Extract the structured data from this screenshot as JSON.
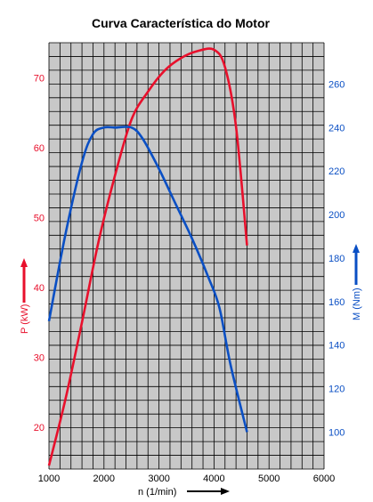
{
  "colors": {
    "power": "#e8102c",
    "torque": "#0a4fc4",
    "grid_bg": "#c8c8c8",
    "grid_line": "#000000"
  },
  "chart_data": {
    "type": "line",
    "title": "Curva Característica do Motor",
    "grid": true,
    "x_axis": {
      "label": "n  (1/min)",
      "range": [
        1000,
        6000
      ],
      "ticks": [
        1000,
        2000,
        3000,
        4000,
        5000,
        6000
      ]
    },
    "y_axis_left": {
      "label": "P (kW)",
      "range": [
        14,
        75
      ],
      "ticks": [
        20,
        30,
        40,
        50,
        60,
        70
      ]
    },
    "y_axis_right": {
      "label": "M (Nm)",
      "range": [
        83,
        279
      ],
      "ticks": [
        100,
        120,
        140,
        160,
        180,
        200,
        220,
        240,
        260
      ]
    },
    "series": [
      {
        "axis": "left",
        "color": "#e8102c",
        "points": [
          [
            1000,
            14.5
          ],
          [
            1300,
            24
          ],
          [
            1600,
            35
          ],
          [
            1900,
            46.5
          ],
          [
            2200,
            56
          ],
          [
            2500,
            64
          ],
          [
            2800,
            68
          ],
          [
            3100,
            71
          ],
          [
            3400,
            72.8
          ],
          [
            3700,
            73.8
          ],
          [
            4000,
            74
          ],
          [
            4200,
            71.5
          ],
          [
            4400,
            63
          ],
          [
            4600,
            46
          ]
        ]
      },
      {
        "axis": "right",
        "color": "#0a4fc4",
        "points": [
          [
            1000,
            151
          ],
          [
            1300,
            191
          ],
          [
            1600,
            224
          ],
          [
            1800,
            237
          ],
          [
            2000,
            240
          ],
          [
            2200,
            240
          ],
          [
            2500,
            240
          ],
          [
            2700,
            235
          ],
          [
            3000,
            221
          ],
          [
            3300,
            205
          ],
          [
            3600,
            189
          ],
          [
            3900,
            171
          ],
          [
            4100,
            157
          ],
          [
            4300,
            131
          ],
          [
            4600,
            100
          ]
        ]
      }
    ]
  }
}
